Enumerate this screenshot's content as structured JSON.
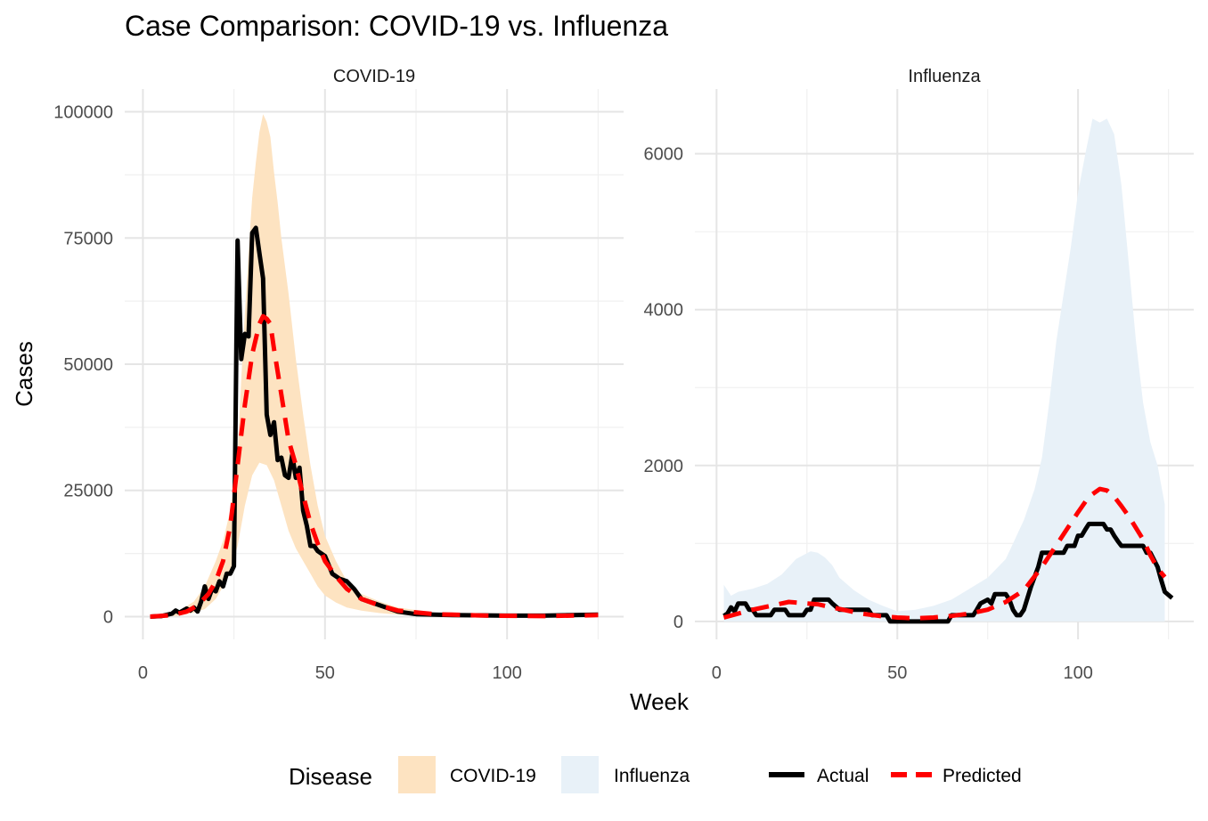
{
  "chart_data": {
    "type": "line",
    "title": "Case Comparison: COVID-19 vs. Influenza",
    "xlabel": "Week",
    "ylabel": "Cases",
    "legend": {
      "position": "bottom",
      "fill_title": "Disease",
      "fill_items": [
        {
          "label": "COVID-19",
          "color": "#FDE3C1"
        },
        {
          "label": "Influenza",
          "color": "#E8F1F8"
        }
      ],
      "line_items": [
        {
          "label": "Actual",
          "color": "#000000",
          "dash": "solid"
        },
        {
          "label": "Predicted",
          "color": "#FF0000",
          "dash": "dashed"
        }
      ]
    },
    "grid": true,
    "panels": [
      {
        "strip": "COVID-19",
        "xlim": [
          -5,
          132
        ],
        "ylim": [
          -4500,
          104500
        ],
        "xticks": [
          0,
          50,
          100
        ],
        "xtick_labels": [
          "0",
          "50",
          "100"
        ],
        "yticks": [
          0,
          25000,
          50000,
          75000,
          100000
        ],
        "ytick_labels": [
          "0",
          "25000",
          "50000",
          "75000",
          "100000"
        ],
        "band_color": "#FDE3C1",
        "band_upper": [
          [
            2,
            300
          ],
          [
            6,
            500
          ],
          [
            10,
            1200
          ],
          [
            14,
            3000
          ],
          [
            17,
            6000
          ],
          [
            20,
            11000
          ],
          [
            22,
            15000
          ],
          [
            24,
            21000
          ],
          [
            26,
            32000
          ],
          [
            27,
            47000
          ],
          [
            28,
            60000
          ],
          [
            29,
            72000
          ],
          [
            30,
            83000
          ],
          [
            31,
            90000
          ],
          [
            32,
            96000
          ],
          [
            33,
            99500
          ],
          [
            34,
            98000
          ],
          [
            35,
            95000
          ],
          [
            36,
            88000
          ],
          [
            37,
            82000
          ],
          [
            38,
            75000
          ],
          [
            40,
            64000
          ],
          [
            42,
            51000
          ],
          [
            44,
            40000
          ],
          [
            46,
            30000
          ],
          [
            48,
            22000
          ],
          [
            50,
            16000
          ],
          [
            53,
            11000
          ],
          [
            56,
            7000
          ],
          [
            60,
            4500
          ],
          [
            65,
            3000
          ],
          [
            70,
            1800
          ],
          [
            80,
            800
          ],
          [
            95,
            400
          ],
          [
            110,
            300
          ],
          [
            125,
            500
          ]
        ],
        "band_lower": [
          [
            2,
            0
          ],
          [
            6,
            0
          ],
          [
            10,
            200
          ],
          [
            14,
            800
          ],
          [
            17,
            1500
          ],
          [
            20,
            3500
          ],
          [
            22,
            6000
          ],
          [
            24,
            9000
          ],
          [
            26,
            14000
          ],
          [
            28,
            22000
          ],
          [
            30,
            28000
          ],
          [
            32,
            30500
          ],
          [
            34,
            30000
          ],
          [
            36,
            27000
          ],
          [
            38,
            22000
          ],
          [
            40,
            17000
          ],
          [
            42,
            13500
          ],
          [
            44,
            11000
          ],
          [
            46,
            8500
          ],
          [
            48,
            6000
          ],
          [
            50,
            4200
          ],
          [
            53,
            2800
          ],
          [
            56,
            1800
          ],
          [
            60,
            1200
          ],
          [
            65,
            700
          ],
          [
            70,
            400
          ],
          [
            80,
            200
          ],
          [
            95,
            100
          ],
          [
            110,
            100
          ],
          [
            125,
            200
          ]
        ],
        "actual": [
          [
            2,
            0
          ],
          [
            5,
            100
          ],
          [
            8,
            600
          ],
          [
            9,
            1200
          ],
          [
            10,
            800
          ],
          [
            12,
            1600
          ],
          [
            13,
            1200
          ],
          [
            14,
            1800
          ],
          [
            15,
            1000
          ],
          [
            16,
            3000
          ],
          [
            17,
            6000
          ],
          [
            18,
            3500
          ],
          [
            19,
            5500
          ],
          [
            20,
            5000
          ],
          [
            21,
            7000
          ],
          [
            22,
            6000
          ],
          [
            23,
            8500
          ],
          [
            24,
            8500
          ],
          [
            25,
            10000
          ],
          [
            26,
            74500
          ],
          [
            27,
            51000
          ],
          [
            28,
            56000
          ],
          [
            29,
            55500
          ],
          [
            30,
            76000
          ],
          [
            31,
            77000
          ],
          [
            32,
            72000
          ],
          [
            33,
            67000
          ],
          [
            34,
            40000
          ],
          [
            35,
            36000
          ],
          [
            36,
            38500
          ],
          [
            37,
            31000
          ],
          [
            38,
            31500
          ],
          [
            39,
            28000
          ],
          [
            40,
            27500
          ],
          [
            41,
            32000
          ],
          [
            42,
            27500
          ],
          [
            43,
            29500
          ],
          [
            44,
            21000
          ],
          [
            45,
            18000
          ],
          [
            46,
            14000
          ],
          [
            47,
            14000
          ],
          [
            48,
            13000
          ],
          [
            50,
            12000
          ],
          [
            52,
            8500
          ],
          [
            54,
            7500
          ],
          [
            56,
            7000
          ],
          [
            58,
            5500
          ],
          [
            60,
            3500
          ],
          [
            62,
            3000
          ],
          [
            64,
            2500
          ],
          [
            66,
            2000
          ],
          [
            70,
            1000
          ],
          [
            75,
            500
          ],
          [
            85,
            300
          ],
          [
            100,
            200
          ],
          [
            110,
            200
          ],
          [
            125,
            400
          ]
        ],
        "predicted": [
          [
            2,
            0
          ],
          [
            8,
            300
          ],
          [
            12,
            1000
          ],
          [
            15,
            2200
          ],
          [
            18,
            4500
          ],
          [
            20,
            7000
          ],
          [
            22,
            11000
          ],
          [
            24,
            18000
          ],
          [
            26,
            30000
          ],
          [
            28,
            42000
          ],
          [
            30,
            52000
          ],
          [
            32,
            58000
          ],
          [
            33,
            59500
          ],
          [
            34,
            59000
          ],
          [
            35,
            58000
          ],
          [
            36,
            53000
          ],
          [
            38,
            44000
          ],
          [
            40,
            35000
          ],
          [
            42,
            30000
          ],
          [
            44,
            24000
          ],
          [
            46,
            18500
          ],
          [
            48,
            14500
          ],
          [
            50,
            11000
          ],
          [
            53,
            8000
          ],
          [
            56,
            5500
          ],
          [
            60,
            3500
          ],
          [
            65,
            2200
          ],
          [
            70,
            1200
          ],
          [
            80,
            500
          ],
          [
            95,
            200
          ],
          [
            110,
            100
          ],
          [
            125,
            300
          ]
        ]
      },
      {
        "strip": "Influenza",
        "xlim": [
          -6,
          132
        ],
        "ylim": [
          -230,
          6830
        ],
        "xticks": [
          0,
          50,
          100
        ],
        "xtick_labels": [
          "0",
          "50",
          "100"
        ],
        "yticks": [
          0,
          2000,
          4000,
          6000
        ],
        "ytick_labels": [
          "0",
          "2000",
          "4000",
          "6000"
        ],
        "band_color": "#E8F1F8",
        "band_upper": [
          [
            2,
            470
          ],
          [
            4,
            330
          ],
          [
            6,
            380
          ],
          [
            10,
            420
          ],
          [
            14,
            480
          ],
          [
            18,
            600
          ],
          [
            22,
            800
          ],
          [
            26,
            900
          ],
          [
            28,
            880
          ],
          [
            30,
            820
          ],
          [
            32,
            720
          ],
          [
            34,
            560
          ],
          [
            38,
            400
          ],
          [
            42,
            280
          ],
          [
            46,
            200
          ],
          [
            50,
            130
          ],
          [
            55,
            150
          ],
          [
            60,
            200
          ],
          [
            65,
            280
          ],
          [
            70,
            420
          ],
          [
            75,
            560
          ],
          [
            80,
            800
          ],
          [
            85,
            1300
          ],
          [
            88,
            1700
          ],
          [
            90,
            2100
          ],
          [
            92,
            2800
          ],
          [
            94,
            3600
          ],
          [
            96,
            4200
          ],
          [
            98,
            4800
          ],
          [
            100,
            5500
          ],
          [
            102,
            6000
          ],
          [
            104,
            6450
          ],
          [
            106,
            6400
          ],
          [
            108,
            6450
          ],
          [
            110,
            6250
          ],
          [
            112,
            5600
          ],
          [
            114,
            4600
          ],
          [
            116,
            3600
          ],
          [
            118,
            2800
          ],
          [
            120,
            2300
          ],
          [
            122,
            2000
          ],
          [
            124,
            1500
          ]
        ],
        "band_lower": [
          [
            2,
            0
          ],
          [
            10,
            0
          ],
          [
            20,
            0
          ],
          [
            30,
            0
          ],
          [
            40,
            0
          ],
          [
            50,
            0
          ],
          [
            60,
            0
          ],
          [
            70,
            0
          ],
          [
            80,
            0
          ],
          [
            90,
            0
          ],
          [
            100,
            0
          ],
          [
            110,
            0
          ],
          [
            124,
            0
          ]
        ],
        "actual": [
          [
            2,
            70
          ],
          [
            3,
            100
          ],
          [
            4,
            180
          ],
          [
            5,
            130
          ],
          [
            6,
            230
          ],
          [
            8,
            230
          ],
          [
            9,
            150
          ],
          [
            10,
            150
          ],
          [
            11,
            80
          ],
          [
            15,
            80
          ],
          [
            16,
            150
          ],
          [
            19,
            150
          ],
          [
            20,
            80
          ],
          [
            24,
            80
          ],
          [
            25,
            150
          ],
          [
            26,
            150
          ],
          [
            27,
            280
          ],
          [
            31,
            280
          ],
          [
            32,
            230
          ],
          [
            34,
            150
          ],
          [
            42,
            150
          ],
          [
            43,
            80
          ],
          [
            47,
            80
          ],
          [
            48,
            0
          ],
          [
            64,
            0
          ],
          [
            65,
            80
          ],
          [
            71,
            80
          ],
          [
            72,
            150
          ],
          [
            73,
            230
          ],
          [
            75,
            280
          ],
          [
            76,
            230
          ],
          [
            77,
            350
          ],
          [
            80,
            350
          ],
          [
            81,
            280
          ],
          [
            82,
            150
          ],
          [
            83,
            80
          ],
          [
            84,
            80
          ],
          [
            85,
            150
          ],
          [
            87,
            450
          ],
          [
            89,
            700
          ],
          [
            90,
            880
          ],
          [
            96,
            880
          ],
          [
            97,
            970
          ],
          [
            99,
            970
          ],
          [
            100,
            1100
          ],
          [
            101,
            1100
          ],
          [
            102,
            1180
          ],
          [
            103,
            1250
          ],
          [
            107,
            1250
          ],
          [
            108,
            1180
          ],
          [
            109,
            1180
          ],
          [
            110,
            1100
          ],
          [
            111,
            1030
          ],
          [
            112,
            970
          ],
          [
            118,
            970
          ],
          [
            119,
            880
          ],
          [
            120,
            880
          ],
          [
            122,
            700
          ],
          [
            123,
            530
          ],
          [
            124,
            380
          ],
          [
            126,
            300
          ]
        ],
        "predicted": [
          [
            2,
            50
          ],
          [
            6,
            100
          ],
          [
            10,
            150
          ],
          [
            15,
            200
          ],
          [
            20,
            250
          ],
          [
            25,
            230
          ],
          [
            28,
            220
          ],
          [
            30,
            200
          ],
          [
            35,
            150
          ],
          [
            40,
            100
          ],
          [
            45,
            70
          ],
          [
            50,
            50
          ],
          [
            55,
            40
          ],
          [
            60,
            50
          ],
          [
            65,
            70
          ],
          [
            70,
            100
          ],
          [
            75,
            150
          ],
          [
            80,
            250
          ],
          [
            85,
            400
          ],
          [
            90,
            700
          ],
          [
            95,
            1050
          ],
          [
            100,
            1400
          ],
          [
            103,
            1600
          ],
          [
            106,
            1700
          ],
          [
            108,
            1680
          ],
          [
            110,
            1600
          ],
          [
            112,
            1480
          ],
          [
            114,
            1350
          ],
          [
            116,
            1200
          ],
          [
            118,
            1050
          ],
          [
            120,
            850
          ],
          [
            122,
            680
          ],
          [
            124,
            570
          ]
        ]
      }
    ]
  }
}
